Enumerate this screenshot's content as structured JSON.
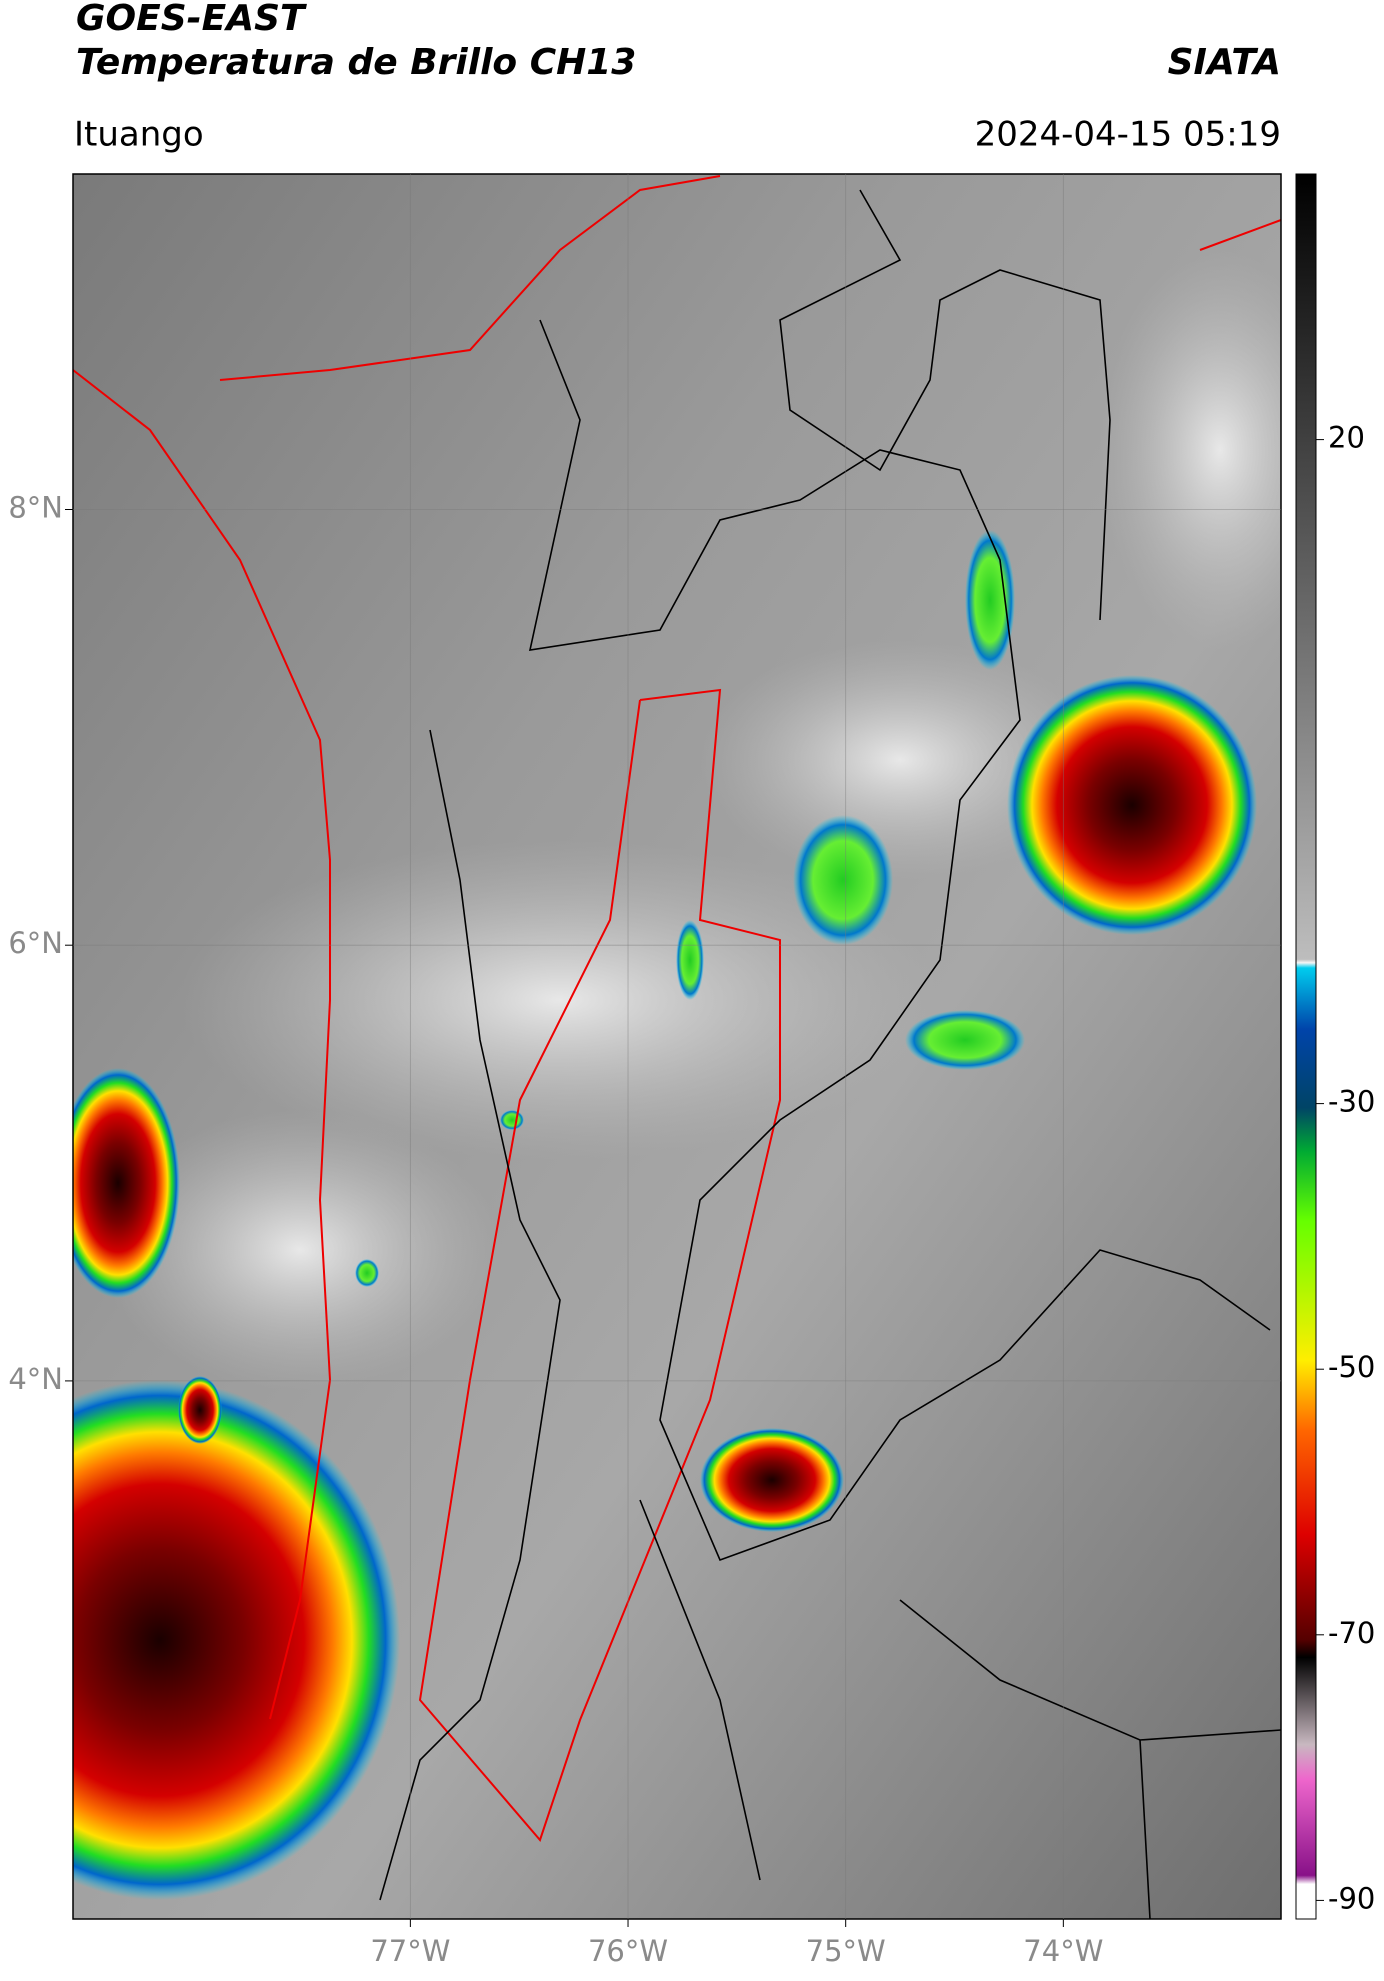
{
  "header": {
    "title": "GOES-EAST",
    "subtitle": "Temperatura de Brillo CH13",
    "brand": "SIATA",
    "location": "Ituango",
    "datetime": "2024-04-15 05:19"
  },
  "chart_data": {
    "type": "map",
    "xlim": [
      -78.55,
      -73.0
    ],
    "ylim": [
      1.53,
      9.54
    ],
    "xticks": [
      {
        "value": -77,
        "label": "77°W"
      },
      {
        "value": -76,
        "label": "76°W"
      },
      {
        "value": -75,
        "label": "75°W"
      },
      {
        "value": -74,
        "label": "74°W"
      }
    ],
    "yticks": [
      {
        "value": 8,
        "label": "8°N"
      },
      {
        "value": 6,
        "label": "6°N"
      },
      {
        "value": 4,
        "label": "4°N"
      }
    ],
    "grid": true,
    "colorbar": {
      "clim": [
        -91.4,
        40
      ],
      "ticks": [
        20,
        -30,
        -50,
        -70,
        -90
      ]
    }
  }
}
